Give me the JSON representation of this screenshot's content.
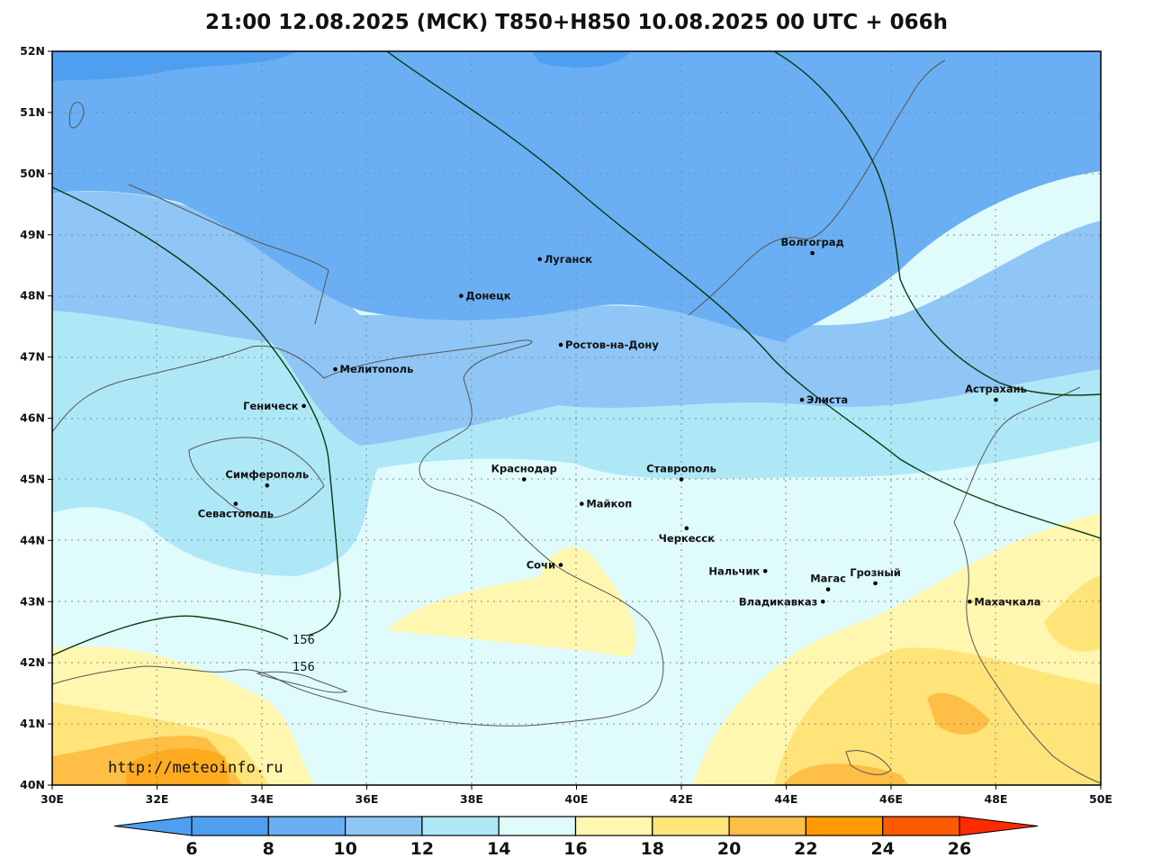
{
  "header": {
    "title": "21:00 12.08.2025 (МСК) T850+H850 10.08.2025 00 UTC + 066h"
  },
  "map": {
    "lon_ticks": [
      "30E",
      "32E",
      "34E",
      "36E",
      "38E",
      "40E",
      "42E",
      "44E",
      "46E",
      "48E",
      "50E"
    ],
    "lat_ticks": [
      "52N",
      "51N",
      "50N",
      "49N",
      "48N",
      "47N",
      "46N",
      "45N",
      "44N",
      "43N",
      "42N",
      "41N",
      "40N"
    ],
    "cities": [
      {
        "name": "Волгоград",
        "lon": 44.5,
        "lat": 48.7
      },
      {
        "name": "Луганск",
        "lon": 39.3,
        "lat": 48.6
      },
      {
        "name": "Донецк",
        "lon": 37.8,
        "lat": 48.0
      },
      {
        "name": "Ростов-на-Дону",
        "lon": 39.7,
        "lat": 47.2
      },
      {
        "name": "Мелитополь",
        "lon": 35.4,
        "lat": 46.8
      },
      {
        "name": "Элиста",
        "lon": 44.3,
        "lat": 46.3
      },
      {
        "name": "Астрахань",
        "lon": 48.0,
        "lat": 46.3
      },
      {
        "name": "Геническ",
        "lon": 34.8,
        "lat": 46.2
      },
      {
        "name": "Симферополь",
        "lon": 34.1,
        "lat": 44.9
      },
      {
        "name": "Севастополь",
        "lon": 33.5,
        "lat": 44.6
      },
      {
        "name": "Краснодар",
        "lon": 39.0,
        "lat": 45.0
      },
      {
        "name": "Ставрополь",
        "lon": 42.0,
        "lat": 45.0
      },
      {
        "name": "Майкоп",
        "lon": 40.1,
        "lat": 44.6
      },
      {
        "name": "Черкесск",
        "lon": 42.1,
        "lat": 44.2
      },
      {
        "name": "Сочи",
        "lon": 39.7,
        "lat": 43.6
      },
      {
        "name": "Нальчик",
        "lon": 43.6,
        "lat": 43.5
      },
      {
        "name": "Магас",
        "lon": 44.8,
        "lat": 43.2
      },
      {
        "name": "Грозный",
        "lon": 45.7,
        "lat": 43.3
      },
      {
        "name": "Владикавказ",
        "lon": 44.7,
        "lat": 43.0
      },
      {
        "name": "Махачкала",
        "lon": 47.5,
        "lat": 43.0
      }
    ],
    "contour_labels": [
      "156",
      "156"
    ],
    "watermark": "http://meteoinfo.ru"
  },
  "colorbar": {
    "labels": [
      "6",
      "8",
      "10",
      "12",
      "14",
      "16",
      "18",
      "20",
      "22",
      "24",
      "26"
    ],
    "colors": [
      "#4f9ff0",
      "#6aaff4",
      "#8fc6f6",
      "#aee8f6",
      "#e0fbfc",
      "#fff7b0",
      "#ffe47a",
      "#ffbe45",
      "#ff9b00",
      "#ff5a00",
      "#ff2a00"
    ]
  }
}
